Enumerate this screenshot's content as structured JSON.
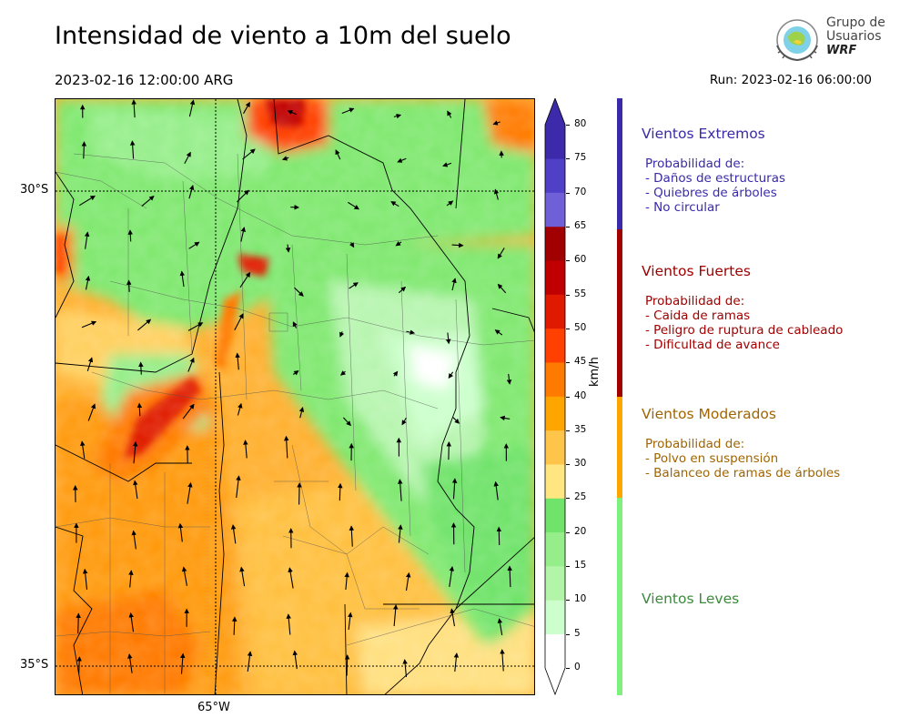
{
  "header": {
    "title": "Intensidad de viento a 10m del suelo",
    "valid_time": "2023-02-16 12:00:00 ARG",
    "run": "Run: 2023-02-16 06:00:00"
  },
  "logo": {
    "line1": "Grupo de",
    "line2": "Usuarios",
    "line3": "WRF"
  },
  "map": {
    "lat_labels": [
      "30°S",
      "35°S"
    ],
    "lon_labels": [
      "65°W"
    ]
  },
  "colorbar": {
    "unit": "km/h",
    "ticks": [
      "80",
      "75",
      "70",
      "65",
      "60",
      "55",
      "50",
      "45",
      "40",
      "35",
      "30",
      "25",
      "20",
      "15",
      "10",
      "5",
      "0"
    ],
    "bins": [
      {
        "from": 0,
        "to": 5,
        "color": "#ffffff"
      },
      {
        "from": 5,
        "to": 10,
        "color": "#ccffcc"
      },
      {
        "from": 10,
        "to": 15,
        "color": "#b2f5a8"
      },
      {
        "from": 15,
        "to": 20,
        "color": "#96ee8a"
      },
      {
        "from": 20,
        "to": 25,
        "color": "#6fe36a"
      },
      {
        "from": 25,
        "to": 30,
        "color": "#ffe680"
      },
      {
        "from": 30,
        "to": 35,
        "color": "#ffc44a"
      },
      {
        "from": 35,
        "to": 40,
        "color": "#ffa500"
      },
      {
        "from": 40,
        "to": 45,
        "color": "#ff7a00"
      },
      {
        "from": 45,
        "to": 50,
        "color": "#ff4000"
      },
      {
        "from": 50,
        "to": 55,
        "color": "#e01a00"
      },
      {
        "from": 55,
        "to": 60,
        "color": "#c00000"
      },
      {
        "from": 60,
        "to": 65,
        "color": "#a00000"
      },
      {
        "from": 65,
        "to": 70,
        "color": "#7060d8"
      },
      {
        "from": 70,
        "to": 75,
        "color": "#5040c8"
      },
      {
        "from": 75,
        "to": 80,
        "color": "#3c2aaa"
      }
    ],
    "over_color": "#3c2aaa",
    "under_color": "#ffffff"
  },
  "categories": [
    {
      "title": "Vientos Extremos",
      "color": "#3a2aa8",
      "bar_color": "#3a2aa8",
      "desc": [
        "Probabilidad de:",
        "- Daños de estructuras",
        "- Quiebres de árboles",
        "- No circular"
      ]
    },
    {
      "title": "Vientos Fuertes",
      "color": "#a00000",
      "bar_color": "#a00000",
      "desc": [
        "Probabilidad de:",
        "- Caida de ramas",
        "- Peligro de ruptura de cableado",
        "- Dificultad de avance"
      ]
    },
    {
      "title": "Vientos Moderados",
      "color": "#a06400",
      "bar_color": "#ffa500",
      "desc": [
        "Probabilidad de:",
        "- Polvo en suspensión",
        "- Balanceo de ramas de árboles"
      ]
    },
    {
      "title": "Vientos Leves",
      "color": "#3c8a3c",
      "bar_color": "#7ef07e",
      "desc": []
    }
  ]
}
